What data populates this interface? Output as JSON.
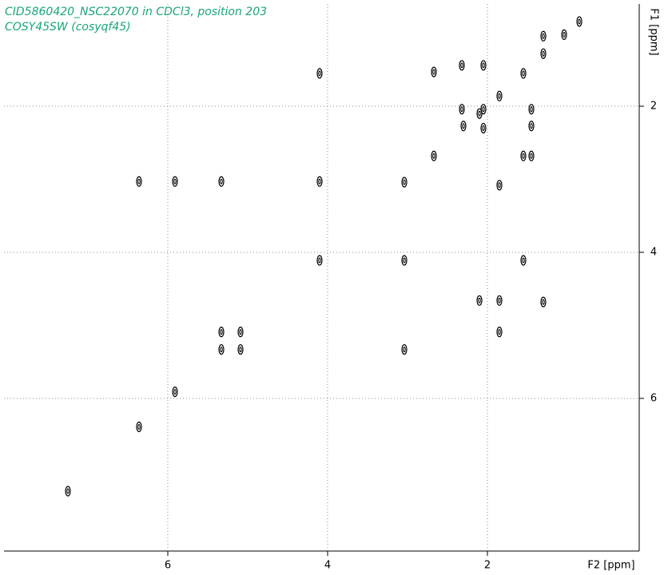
{
  "chart_data": {
    "type": "scatter",
    "title": "CID5860420_NSC22070 in CDCl3, position 203",
    "subtitle": "COSY45SW (cosyqf45)",
    "x_label": "F2 [ppm]",
    "y_label": "F1 [ppm]",
    "x": [
      0.85,
      1.04,
      1.3,
      1.3,
      1.55,
      1.85,
      2.1,
      2.3,
      2.67,
      3.04,
      4.1,
      4.1,
      4.1,
      3.04,
      1.55,
      6.36,
      5.91,
      5.33,
      5.33,
      5.09,
      5.33,
      5.09,
      3.04,
      5.91,
      6.36,
      7.25,
      2.67,
      2.32,
      2.05,
      2.32,
      2.05,
      2.05,
      1.45,
      1.45,
      1.55,
      1.45,
      1.85,
      2.1,
      1.85,
      1.3,
      1.85
    ],
    "series": [
      {
        "color": "#000000",
        "values": [
          0.84,
          1.02,
          1.28,
          1.04,
          1.55,
          1.86,
          2.1,
          2.27,
          2.68,
          3.04,
          1.55,
          3.03,
          4.11,
          4.11,
          4.11,
          3.03,
          3.03,
          3.03,
          5.09,
          5.09,
          5.33,
          5.33,
          5.33,
          5.91,
          6.39,
          7.27,
          1.53,
          1.44,
          1.44,
          2.04,
          2.04,
          2.3,
          2.04,
          2.27,
          2.68,
          2.68,
          3.08,
          4.66,
          4.66,
          4.68,
          5.09
        ]
      }
    ],
    "xlim": [
      8.05,
      0.1
    ],
    "ylim": [
      8.09,
      0.6
    ],
    "xticks": [
      6,
      4,
      2
    ],
    "yticks": [
      2,
      4,
      6
    ],
    "grid": true,
    "title_color": "#19a57a"
  }
}
